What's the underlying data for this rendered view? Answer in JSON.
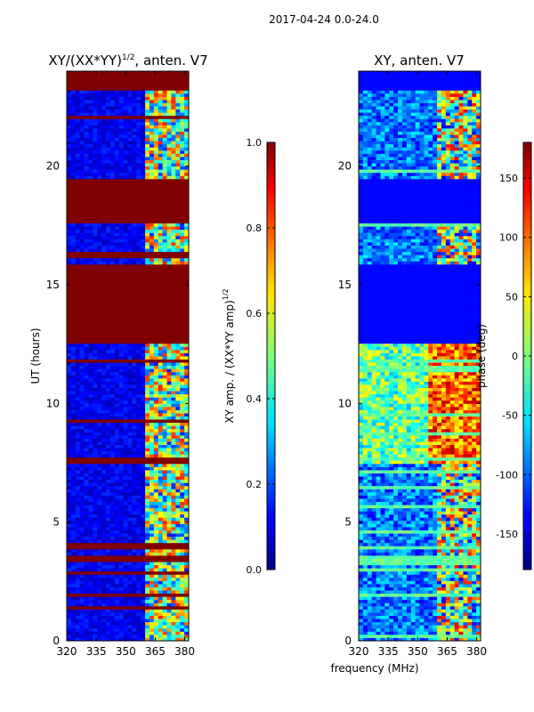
{
  "figure": {
    "suptitle": "2017-04-24 0.0-24.0",
    "xlabel": "frequency (MHz)"
  },
  "chart_data": [
    {
      "type": "heatmap",
      "title_main": "XY/(XX*YY)",
      "title_sup": "1/2",
      "title_rest": ", anten. V7",
      "xlabel": "frequency (MHz)",
      "ylabel": "UT (hours)",
      "xlim": [
        320,
        382
      ],
      "ylim": [
        0,
        24
      ],
      "xticks": [
        "320",
        "335",
        "350",
        "365",
        "380"
      ],
      "yticks": [
        "0",
        "5",
        "10",
        "15",
        "20"
      ],
      "colorbar": {
        "label_main": "XY amp. / (XX*YY amp)",
        "label_sup": "1/2",
        "range": [
          0.0,
          1.0
        ],
        "ticks": [
          "0.0",
          "0.2",
          "0.4",
          "0.6",
          "0.8",
          "1.0"
        ],
        "colormap": "jet"
      },
      "saturated_time_ranges": [
        [
          23.15,
          24.0
        ],
        [
          19.5,
          17.6
        ],
        [
          16.1,
          16.4
        ],
        [
          12.5,
          15.8
        ],
        [
          3.4,
          3.55
        ],
        [
          7.55,
          7.72
        ]
      ],
      "active_freq_range": [
        359,
        382
      ]
    },
    {
      "type": "heatmap",
      "title": "XY, anten. V7",
      "xlim": [
        320,
        382
      ],
      "ylim": [
        0,
        24
      ],
      "xticks": [
        "320",
        "335",
        "350",
        "365",
        "380"
      ],
      "yticks": [
        "0",
        "5",
        "10",
        "15",
        "20"
      ],
      "colorbar": {
        "label": "phase (deg)",
        "range": [
          -180,
          180
        ],
        "ticks": [
          "-150",
          "-100",
          "-50",
          "0",
          "50",
          "100",
          "150"
        ],
        "colormap": "jet"
      },
      "flat_phase_time_ranges": [
        [
          23.15,
          24.0
        ],
        [
          17.6,
          19.5
        ],
        [
          12.5,
          15.8
        ]
      ]
    }
  ]
}
